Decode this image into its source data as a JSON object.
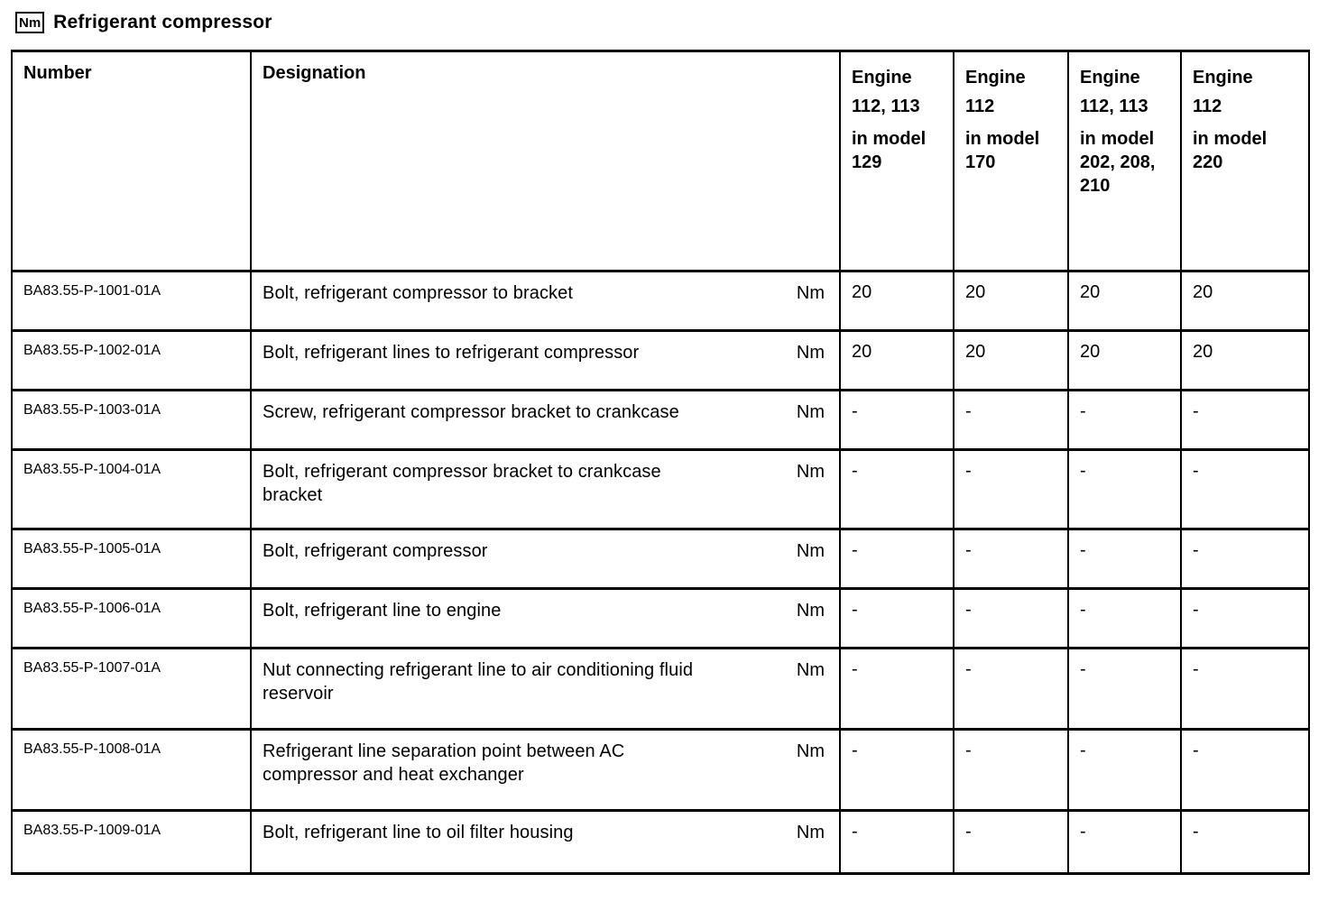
{
  "page": {
    "title": "Refrigerant compressor",
    "title_icon": "Nm"
  },
  "table": {
    "headers": {
      "number": "Number",
      "designation": "Designation"
    },
    "engine_columns": [
      {
        "engine_lines": [
          "Engine",
          "112, 113"
        ],
        "model_lines": [
          "in model",
          "129"
        ]
      },
      {
        "engine_lines": [
          "Engine",
          "112"
        ],
        "model_lines": [
          "in model",
          "170"
        ]
      },
      {
        "engine_lines": [
          "Engine",
          "112, 113"
        ],
        "model_lines": [
          "in model",
          "202, 208,",
          "210"
        ]
      },
      {
        "engine_lines": [
          "Engine",
          "112"
        ],
        "model_lines": [
          "in model",
          "220"
        ]
      }
    ],
    "rows": [
      {
        "number": "BA83.55-P-1001-01A",
        "designation": "Bolt, refrigerant compressor to bracket",
        "unit": "Nm",
        "values": [
          "20",
          "20",
          "20",
          "20"
        ]
      },
      {
        "number": "BA83.55-P-1002-01A",
        "designation": "Bolt, refrigerant lines to refrigerant compressor",
        "unit": "Nm",
        "values": [
          "20",
          "20",
          "20",
          "20"
        ]
      },
      {
        "number": "BA83.55-P-1003-01A",
        "designation": "Screw, refrigerant compressor bracket to crankcase",
        "unit": "Nm",
        "values": [
          "-",
          "-",
          "-",
          "-"
        ]
      },
      {
        "number": "BA83.55-P-1004-01A",
        "designation": "Bolt, refrigerant compressor bracket to crankcase bracket",
        "unit": "Nm",
        "values": [
          "-",
          "-",
          "-",
          "-"
        ]
      },
      {
        "number": "BA83.55-P-1005-01A",
        "designation": "Bolt, refrigerant compressor",
        "unit": "Nm",
        "values": [
          "-",
          "-",
          "-",
          "-"
        ]
      },
      {
        "number": "BA83.55-P-1006-01A",
        "designation": "Bolt, refrigerant line to engine",
        "unit": "Nm",
        "values": [
          "-",
          "-",
          "-",
          "-"
        ]
      },
      {
        "number": "BA83.55-P-1007-01A",
        "designation": "Nut connecting refrigerant line to air conditioning fluid reservoir",
        "unit": "Nm",
        "values": [
          "-",
          "-",
          "-",
          "-"
        ]
      },
      {
        "number": "BA83.55-P-1008-01A",
        "designation": "Refrigerant line separation point between AC compressor and heat exchanger",
        "unit": "Nm",
        "values": [
          "-",
          "-",
          "-",
          "-"
        ]
      },
      {
        "number": "BA83.55-P-1009-01A",
        "designation": "Bolt, refrigerant line to oil filter housing",
        "unit": "Nm",
        "values": [
          "-",
          "-",
          "-",
          "-"
        ]
      }
    ]
  }
}
